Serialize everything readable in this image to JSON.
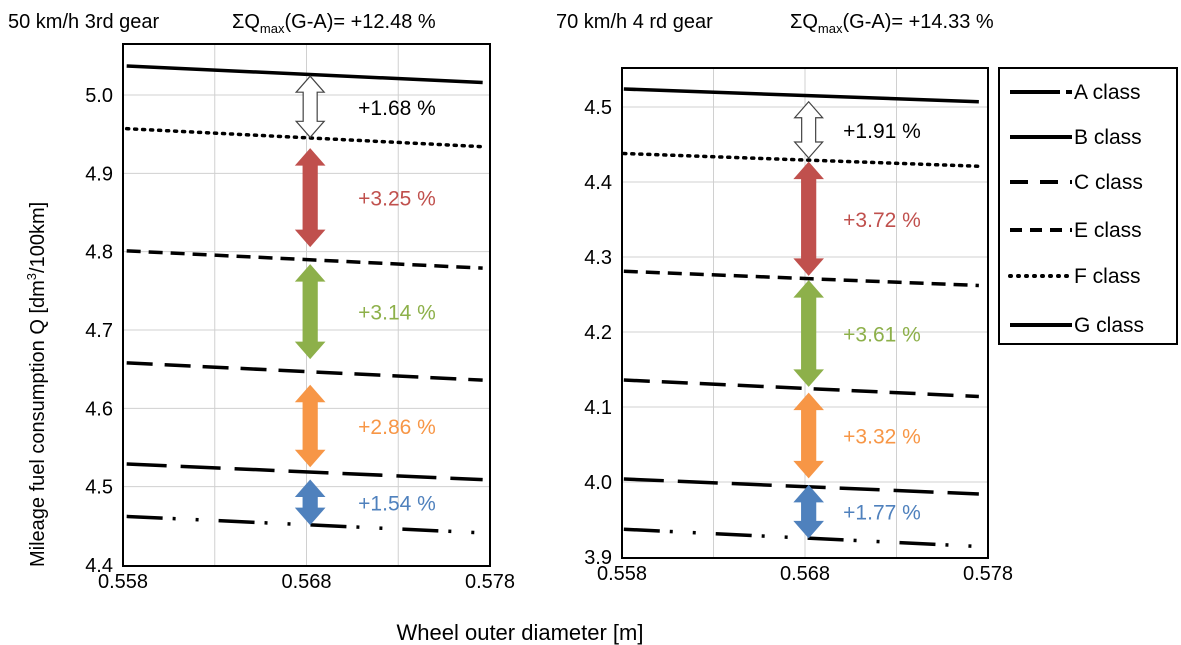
{
  "chart_data": [
    {
      "type": "line",
      "title_left": "50 km/h 3rd gear",
      "title_right_prefix": "ΣQ",
      "title_right_sub": "max",
      "title_right_suffix": "(G-A)= +12.48 %",
      "x_range": [
        0.558,
        0.578
      ],
      "y_range": [
        4.4,
        5.04
      ],
      "x_ticks": [
        0.558,
        0.568,
        0.578
      ],
      "x_tick_labels": [
        "0.558",
        "0.568",
        "0.578"
      ],
      "y_ticks": [
        4.4,
        4.5,
        4.6,
        4.7,
        4.8,
        4.9,
        5.0
      ],
      "y_tick_labels": [
        "4.4",
        "4.5",
        "4.6",
        "4.7",
        "4.8",
        "4.9",
        "5.0"
      ],
      "x_gridlines": [
        0.563,
        0.568,
        0.573
      ],
      "grid": true,
      "series": [
        {
          "name": "A class",
          "x": [
            0.5582,
            0.5776
          ],
          "y": [
            4.462,
            4.441
          ]
        },
        {
          "name": "B class",
          "x": [
            0.5582,
            0.5776
          ],
          "y": [
            4.529,
            4.509
          ]
        },
        {
          "name": "C class",
          "x": [
            0.5582,
            0.5776
          ],
          "y": [
            4.658,
            4.636
          ]
        },
        {
          "name": "E class",
          "x": [
            0.5582,
            0.5776
          ],
          "y": [
            4.801,
            4.779
          ]
        },
        {
          "name": "F class",
          "x": [
            0.5582,
            0.5776
          ],
          "y": [
            4.957,
            4.934
          ]
        },
        {
          "name": "G class",
          "x": [
            0.5582,
            0.5776
          ],
          "y": [
            5.037,
            5.016
          ]
        }
      ],
      "annotations": [
        {
          "label": "+1.68 %",
          "y_from": 5.024,
          "y_to": 4.946,
          "color": "#ffffff",
          "text_color": "#000000"
        },
        {
          "label": "+3.25 %",
          "y_from": 4.931,
          "y_to": 4.807,
          "color": "#c0504d",
          "text_color": "#c0504d"
        },
        {
          "label": "+3.14 %",
          "y_from": 4.783,
          "y_to": 4.664,
          "color": "#8db04a",
          "text_color": "#8db04a"
        },
        {
          "label": "+2.86 %",
          "y_from": 4.629,
          "y_to": 4.526,
          "color": "#f79646",
          "text_color": "#f79646"
        },
        {
          "label": "+1.54 %",
          "y_from": 4.508,
          "y_to": 4.452,
          "color": "#4f81bd",
          "text_color": "#4f81bd"
        }
      ]
    },
    {
      "type": "line",
      "title_left": "70 km/h 4 rd gear",
      "title_right_prefix": "ΣQ",
      "title_right_sub": "max",
      "title_right_suffix": "(G-A)= +14.33 %",
      "x_range": [
        0.558,
        0.578
      ],
      "y_range": [
        3.9,
        4.55
      ],
      "x_ticks": [
        0.558,
        0.568,
        0.578
      ],
      "x_tick_labels": [
        "0.558",
        "0.568",
        "0.578"
      ],
      "y_ticks": [
        3.9,
        4.0,
        4.1,
        4.2,
        4.3,
        4.4,
        4.5
      ],
      "y_tick_labels": [
        "3.9",
        "4.0",
        "4.1",
        "4.2",
        "4.3",
        "4.4",
        "4.5"
      ],
      "x_gridlines": [
        0.563,
        0.568,
        0.573
      ],
      "grid": true,
      "series": [
        {
          "name": "A class",
          "x": [
            0.5581,
            0.5775
          ],
          "y": [
            3.937,
            3.914
          ]
        },
        {
          "name": "B class",
          "x": [
            0.5581,
            0.5775
          ],
          "y": [
            4.004,
            3.984
          ]
        },
        {
          "name": "C class",
          "x": [
            0.5581,
            0.5775
          ],
          "y": [
            4.136,
            4.114
          ]
        },
        {
          "name": "E class",
          "x": [
            0.5581,
            0.5775
          ],
          "y": [
            4.281,
            4.262
          ]
        },
        {
          "name": "F class",
          "x": [
            0.5581,
            0.5775
          ],
          "y": [
            4.438,
            4.421
          ]
        },
        {
          "name": "G class",
          "x": [
            0.5581,
            0.5775
          ],
          "y": [
            4.524,
            4.507
          ]
        }
      ],
      "annotations": [
        {
          "label": "+1.91 %",
          "y_from": 4.507,
          "y_to": 4.432,
          "color": "#ffffff",
          "text_color": "#000000"
        },
        {
          "label": "+3.72 %",
          "y_from": 4.426,
          "y_to": 4.276,
          "color": "#c0504d",
          "text_color": "#c0504d"
        },
        {
          "label": "+3.61 %",
          "y_from": 4.268,
          "y_to": 4.128,
          "color": "#8db04a",
          "text_color": "#8db04a"
        },
        {
          "label": "+3.32 %",
          "y_from": 4.118,
          "y_to": 4.006,
          "color": "#f79646",
          "text_color": "#f79646"
        },
        {
          "label": "+1.77 %",
          "y_from": 3.995,
          "y_to": 3.926,
          "color": "#4f81bd",
          "text_color": "#4f81bd"
        }
      ]
    }
  ],
  "ylabel_main": "Mileage fuel consumption Q [dm",
  "ylabel_sup": "3",
  "ylabel_tail": "/100km]",
  "xlabel": "Wheel outer diameter [m]",
  "legend": {
    "placement": "right",
    "entries": [
      {
        "name": "A class",
        "style": "long-dash"
      },
      {
        "name": "B class",
        "style": "solid"
      },
      {
        "name": "C class",
        "style": "dash"
      },
      {
        "name": "E class",
        "style": "short-dash"
      },
      {
        "name": "F class",
        "style": "dotted"
      },
      {
        "name": "G class",
        "style": "solid"
      }
    ]
  }
}
